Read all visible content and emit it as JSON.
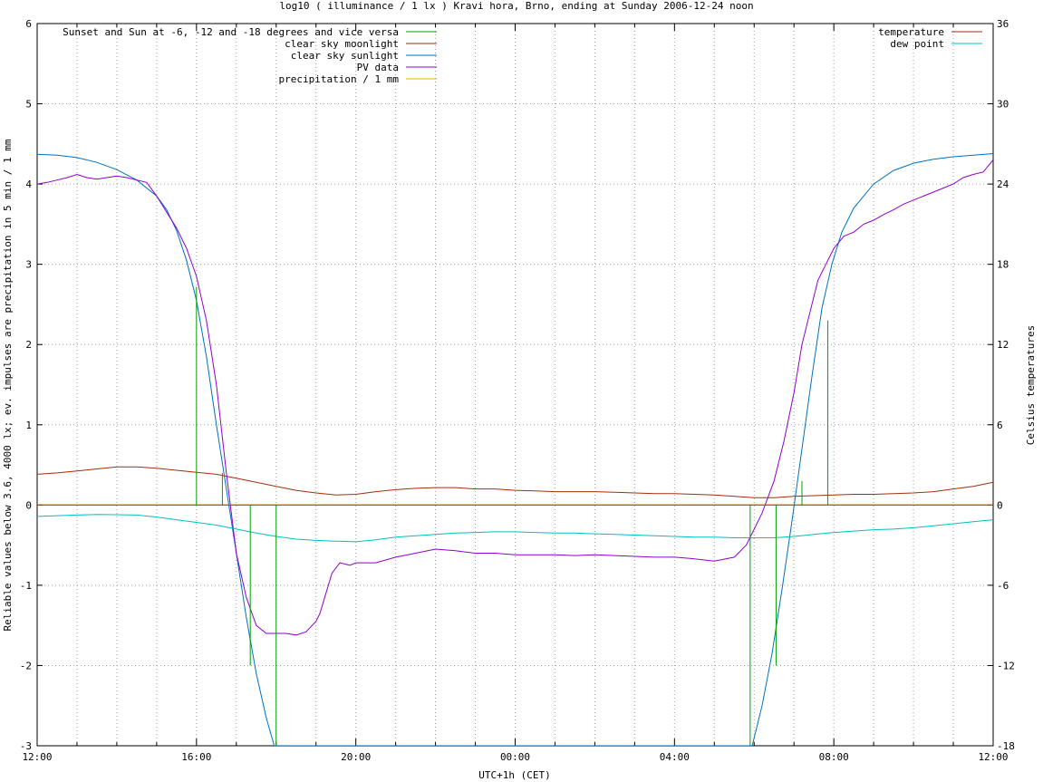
{
  "chart_data": {
    "type": "line",
    "title": "log10 ( illuminance / 1 lx ) Kravi hora, Brno, ending at Sunday 2006-12-24 noon",
    "xlabel": "UTC+1h (CET)",
    "ylabel": "Reliable values below 3.6, 4000 lx; ev. impulses are precipitation in 5 min / 1 mm",
    "y2label": "Celsius temperatures",
    "x_unit": "hours after 2006-12-23 12:00 (UTC+1h)",
    "xlim": [
      0,
      24
    ],
    "ylim": [
      -3,
      6
    ],
    "y2lim": [
      -18,
      36
    ],
    "x_ticks": [
      {
        "x": 0,
        "label": "12:00"
      },
      {
        "x": 4,
        "label": "16:00"
      },
      {
        "x": 8,
        "label": "20:00"
      },
      {
        "x": 12,
        "label": "00:00"
      },
      {
        "x": 16,
        "label": "04:00"
      },
      {
        "x": 20,
        "label": "08:00"
      },
      {
        "x": 24,
        "label": "12:00"
      }
    ],
    "x_grid_step": 1,
    "y_ticks": [
      -3,
      -2,
      -1,
      0,
      1,
      2,
      3,
      4,
      5,
      6
    ],
    "y_tick_labels": [
      "-3",
      "-2",
      "-1",
      "0",
      "1",
      "2",
      "3",
      "4",
      "5",
      "6"
    ],
    "y2_ticks": [
      -18,
      -12,
      -6,
      0,
      6,
      12,
      18,
      24,
      30,
      36
    ],
    "y2_tick_labels": [
      "-18",
      "-12",
      "-6",
      "0",
      "6",
      "12",
      "18",
      "24",
      "30",
      "36"
    ],
    "grid": true,
    "legend_left": {
      "placement": "top-left"
    },
    "legend_right": {
      "placement": "top-right"
    },
    "twilight": {
      "name": "Sunset and Sun at -6, -12 and -18 degrees and vice versa",
      "color": "#00a000",
      "impulses": [
        {
          "x": 4.0,
          "y": 2.72
        },
        {
          "x": 4.65,
          "y": 0.4
        },
        {
          "x": 5.35,
          "y": -2.0
        },
        {
          "x": 6.0,
          "y": -3.0
        },
        {
          "x": 17.9,
          "y": -3.0
        },
        {
          "x": 18.55,
          "y": -2.0
        },
        {
          "x": 19.2,
          "y": 0.3
        },
        {
          "x": 19.85,
          "y": 2.3
        }
      ]
    },
    "series": [
      {
        "name": "clear sky moonlight",
        "color": "#a0300a",
        "axis": "y2",
        "x": [
          0,
          0.5,
          1,
          1.5,
          2,
          2.5,
          3,
          3.5,
          4,
          4.5,
          5,
          5.5,
          6,
          6.5,
          7,
          7.5,
          8,
          8.5,
          9,
          9.5,
          10,
          10.5,
          11,
          11.5,
          12,
          12.5,
          13,
          13.5,
          14,
          14.5,
          15,
          15.5,
          16,
          16.5,
          17,
          17.5,
          18,
          18.5,
          19,
          19.5,
          20,
          20.5,
          21,
          21.5,
          22,
          22.5,
          23,
          23.5,
          24
        ],
        "values": [
          2.3,
          2.4,
          2.55,
          2.7,
          2.85,
          2.85,
          2.75,
          2.6,
          2.45,
          2.3,
          2.0,
          1.7,
          1.4,
          1.1,
          0.9,
          0.75,
          0.8,
          1.0,
          1.15,
          1.25,
          1.3,
          1.3,
          1.2,
          1.2,
          1.1,
          1.05,
          1.0,
          1.0,
          1.0,
          0.95,
          0.9,
          0.85,
          0.85,
          0.8,
          0.75,
          0.65,
          0.55,
          0.55,
          0.65,
          0.7,
          0.75,
          0.8,
          0.8,
          0.85,
          0.9,
          1.0,
          1.2,
          1.4,
          1.7
        ]
      },
      {
        "name": "clear sky sunlight",
        "color": "#0070c0",
        "axis": "y",
        "x": [
          0,
          0.5,
          1,
          1.5,
          2,
          2.5,
          3,
          3.25,
          3.5,
          3.75,
          4,
          4.25,
          4.5,
          4.75,
          5,
          5.25,
          5.5,
          5.75,
          5.95,
          17.95,
          18.2,
          18.45,
          18.7,
          18.95,
          19.2,
          19.45,
          19.7,
          19.95,
          20.2,
          20.5,
          21,
          21.5,
          22,
          22.5,
          23,
          23.5,
          24
        ],
        "values": [
          4.37,
          4.36,
          4.33,
          4.27,
          4.18,
          4.05,
          3.85,
          3.68,
          3.42,
          3.05,
          2.55,
          1.85,
          1.0,
          0.2,
          -0.6,
          -1.4,
          -2.1,
          -2.65,
          -3.0,
          -3.0,
          -2.5,
          -1.85,
          -1.05,
          -0.2,
          0.7,
          1.6,
          2.45,
          3.0,
          3.4,
          3.7,
          4.0,
          4.17,
          4.26,
          4.31,
          4.34,
          4.36,
          4.38
        ]
      },
      {
        "name": "PV data",
        "color": "#9000d0",
        "axis": "y",
        "x": [
          0,
          0.25,
          0.5,
          0.75,
          1,
          1.25,
          1.5,
          1.75,
          2,
          2.25,
          2.5,
          2.75,
          3,
          3.25,
          3.5,
          3.75,
          4,
          4.25,
          4.5,
          4.75,
          5,
          5.25,
          5.5,
          5.75,
          6,
          6.25,
          6.5,
          6.75,
          7,
          7.1,
          7.25,
          7.4,
          7.6,
          7.85,
          8,
          8.5,
          9,
          9.5,
          10,
          10.5,
          11,
          11.5,
          12,
          12.5,
          13,
          13.5,
          14,
          14.5,
          15,
          15.5,
          16,
          16.5,
          17,
          17.5,
          17.8,
          18,
          18.2,
          18.5,
          18.75,
          19,
          19.2,
          19.4,
          19.6,
          19.8,
          20,
          20.25,
          20.5,
          20.75,
          21,
          21.25,
          21.5,
          21.75,
          22,
          22.25,
          22.5,
          22.75,
          23,
          23.25,
          23.5,
          23.75,
          24
        ],
        "values": [
          4.0,
          4.02,
          4.05,
          4.08,
          4.12,
          4.08,
          4.06,
          4.08,
          4.1,
          4.08,
          4.05,
          4.02,
          3.85,
          3.65,
          3.45,
          3.2,
          2.85,
          2.3,
          1.5,
          0.4,
          -0.6,
          -1.15,
          -1.5,
          -1.6,
          -1.6,
          -1.6,
          -1.62,
          -1.58,
          -1.45,
          -1.35,
          -1.1,
          -0.85,
          -0.72,
          -0.75,
          -0.72,
          -0.72,
          -0.65,
          -0.6,
          -0.55,
          -0.57,
          -0.6,
          -0.6,
          -0.62,
          -0.62,
          -0.62,
          -0.63,
          -0.62,
          -0.63,
          -0.64,
          -0.65,
          -0.65,
          -0.67,
          -0.7,
          -0.65,
          -0.5,
          -0.3,
          -0.1,
          0.3,
          0.8,
          1.4,
          2.0,
          2.4,
          2.8,
          3.0,
          3.2,
          3.35,
          3.4,
          3.5,
          3.55,
          3.62,
          3.68,
          3.75,
          3.8,
          3.85,
          3.9,
          3.95,
          4.0,
          4.08,
          4.12,
          4.15,
          4.3
        ]
      },
      {
        "name": "precipitation / 1 mm",
        "color": "#f0b000",
        "axis": "y",
        "x": [
          0,
          24
        ],
        "values": [
          0,
          0
        ]
      },
      {
        "name": "temperature",
        "color": "#a0300a",
        "axis": "y2",
        "legend": "right",
        "x": [
          0,
          24
        ],
        "values": [
          0,
          0
        ]
      },
      {
        "name": "dew point",
        "color": "#00c0c0",
        "axis": "y2",
        "legend": "right",
        "x": [
          0,
          0.5,
          1,
          1.5,
          2,
          2.5,
          3,
          3.5,
          4,
          4.5,
          5,
          5.5,
          6,
          6.5,
          7,
          7.5,
          8,
          8.5,
          9,
          9.5,
          10,
          10.5,
          11,
          11.5,
          12,
          12.5,
          13,
          13.5,
          14,
          14.5,
          15,
          15.5,
          16,
          16.5,
          17,
          17.5,
          18,
          18.5,
          19,
          19.5,
          20,
          20.5,
          21,
          21.5,
          22,
          22.5,
          23,
          23.5,
          24
        ],
        "values": [
          -0.85,
          -0.8,
          -0.75,
          -0.7,
          -0.72,
          -0.75,
          -0.9,
          -1.1,
          -1.3,
          -1.5,
          -1.8,
          -2.1,
          -2.35,
          -2.55,
          -2.65,
          -2.7,
          -2.75,
          -2.6,
          -2.4,
          -2.3,
          -2.2,
          -2.1,
          -2.05,
          -2.0,
          -2.0,
          -2.05,
          -2.1,
          -2.1,
          -2.15,
          -2.2,
          -2.25,
          -2.3,
          -2.35,
          -2.4,
          -2.4,
          -2.45,
          -2.45,
          -2.45,
          -2.35,
          -2.2,
          -2.05,
          -1.95,
          -1.85,
          -1.8,
          -1.7,
          -1.55,
          -1.4,
          -1.25,
          -1.1
        ]
      }
    ]
  }
}
